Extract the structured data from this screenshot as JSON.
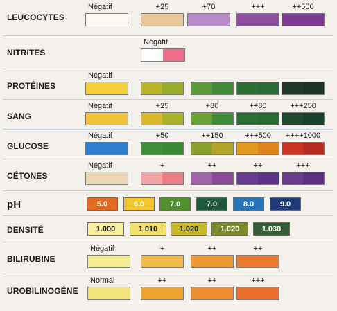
{
  "rows": [
    {
      "label": "LEUCOCYTES",
      "swatches": [
        {
          "caption": "Négatif",
          "colors": [
            "#fbf8ef",
            "#fbf8ef"
          ]
        },
        {
          "caption": "+25",
          "colors": [
            "#e6c69a",
            "#e6c69a"
          ]
        },
        {
          "caption": "+70",
          "colors": [
            "#b78bc8",
            "#b78bc8"
          ]
        },
        {
          "caption": "+++",
          "colors": [
            "#8b4f9e",
            "#8b4f9e"
          ]
        },
        {
          "caption": "++500",
          "colors": [
            "#7a3a8d",
            "#7a3a8d"
          ]
        }
      ]
    },
    {
      "label": "NITRITES",
      "swatches": [
        {
          "caption": "Négatif",
          "colors": [
            "#fdfdfd",
            "#ee6e8a"
          ]
        }
      ]
    },
    {
      "label": "PROTÉINES",
      "swatches": [
        {
          "caption": "Négatif",
          "colors": [
            "#f3cf3c",
            "#f3cf3c"
          ]
        },
        {
          "caption": "",
          "colors": [
            "#b9b52a",
            "#98ab2a"
          ]
        },
        {
          "caption": "",
          "colors": [
            "#5a9a37",
            "#3f8a3a"
          ]
        },
        {
          "caption": "",
          "colors": [
            "#2b6f35",
            "#2a6a33"
          ]
        },
        {
          "caption": "",
          "colors": [
            "#1f3a28",
            "#1c3325"
          ]
        }
      ]
    },
    {
      "label": "SANG",
      "swatches": [
        {
          "caption": "Négatif",
          "colors": [
            "#f2c23a",
            "#f2c23a"
          ]
        },
        {
          "caption": "+25",
          "colors": [
            "#d8b72d",
            "#a9b02a"
          ]
        },
        {
          "caption": "+80",
          "colors": [
            "#6aa236",
            "#3f8a3a"
          ]
        },
        {
          "caption": "++80",
          "colors": [
            "#2e6e38",
            "#2a6a33"
          ]
        },
        {
          "caption": "+++250",
          "colors": [
            "#1f4a30",
            "#1a3f2a"
          ]
        }
      ]
    },
    {
      "label": "GLUCOSE",
      "swatches": [
        {
          "caption": "Négatif",
          "colors": [
            "#2e7fd0",
            "#2e7fd0"
          ]
        },
        {
          "caption": "+50",
          "colors": [
            "#3f8f3a",
            "#3a8a36"
          ]
        },
        {
          "caption": "++150",
          "colors": [
            "#8aa12b",
            "#b3a42a"
          ]
        },
        {
          "caption": "+++500",
          "colors": [
            "#e49a1f",
            "#e0841c"
          ]
        },
        {
          "caption": "++++1000",
          "colors": [
            "#c83525",
            "#b62b22"
          ]
        }
      ]
    },
    {
      "label": "CÉTONES",
      "swatches": [
        {
          "caption": "Négatif",
          "colors": [
            "#ead7b4",
            "#ead7b4"
          ]
        },
        {
          "caption": "+",
          "colors": [
            "#f3a5a6",
            "#ee7e86"
          ]
        },
        {
          "caption": "++",
          "colors": [
            "#a065a6",
            "#8b4a98"
          ]
        },
        {
          "caption": "++",
          "colors": [
            "#6a3c8f",
            "#5e3489"
          ]
        },
        {
          "caption": "+++",
          "colors": [
            "#6a3b8c",
            "#5b3080"
          ]
        }
      ]
    },
    {
      "label": "pH",
      "ph": true,
      "boxes": [
        {
          "text": "5.0",
          "bg": "#e06a1f",
          "fg": "#ffffff"
        },
        {
          "text": "6.0",
          "bg": "#f6c72c",
          "fg": "#ffffff"
        },
        {
          "text": "7.0",
          "bg": "#4f8f2e",
          "fg": "#ffffff"
        },
        {
          "text": "7.0",
          "bg": "#1f5b3a",
          "fg": "#ffffff"
        },
        {
          "text": "8.0",
          "bg": "#2573b8",
          "fg": "#ffffff"
        },
        {
          "text": "9.0",
          "bg": "#203a7a",
          "fg": "#ffffff"
        }
      ]
    },
    {
      "label": "DENSITÉ",
      "boxes": [
        {
          "text": "1.000",
          "bg": "#f8ef9e",
          "fg": "#1a1a1a"
        },
        {
          "text": "1.010",
          "bg": "#f1e16c",
          "fg": "#1a1a1a"
        },
        {
          "text": "1.020",
          "bg": "#c9b82c",
          "fg": "#1a1a1a"
        },
        {
          "text": "1.020",
          "bg": "#7e8a2e",
          "fg": "#ffffff"
        },
        {
          "text": "1.030",
          "bg": "#355c34",
          "fg": "#ffffff"
        }
      ]
    },
    {
      "label": "BILIRUBINE",
      "swatches": [
        {
          "caption": "Négatif",
          "colors": [
            "#f4ec90",
            "#f4ec90"
          ]
        },
        {
          "caption": "+",
          "colors": [
            "#f1bb4a",
            "#f1bb4a"
          ]
        },
        {
          "caption": "++",
          "colors": [
            "#ee9a33",
            "#ee9a33"
          ]
        },
        {
          "caption": "++",
          "colors": [
            "#ec7b2e",
            "#ec7b2e"
          ]
        }
      ]
    },
    {
      "label": "UROBILINOGÉNE",
      "swatches": [
        {
          "caption": "Normal",
          "colors": [
            "#f4e47a",
            "#f4e47a"
          ]
        },
        {
          "caption": "++",
          "colors": [
            "#f0a231",
            "#f0a231"
          ]
        },
        {
          "caption": "++",
          "colors": [
            "#ee8b2f",
            "#ee8b2f"
          ]
        },
        {
          "caption": "+++",
          "colors": [
            "#ec6f2c",
            "#ec6f2c"
          ]
        }
      ]
    }
  ]
}
